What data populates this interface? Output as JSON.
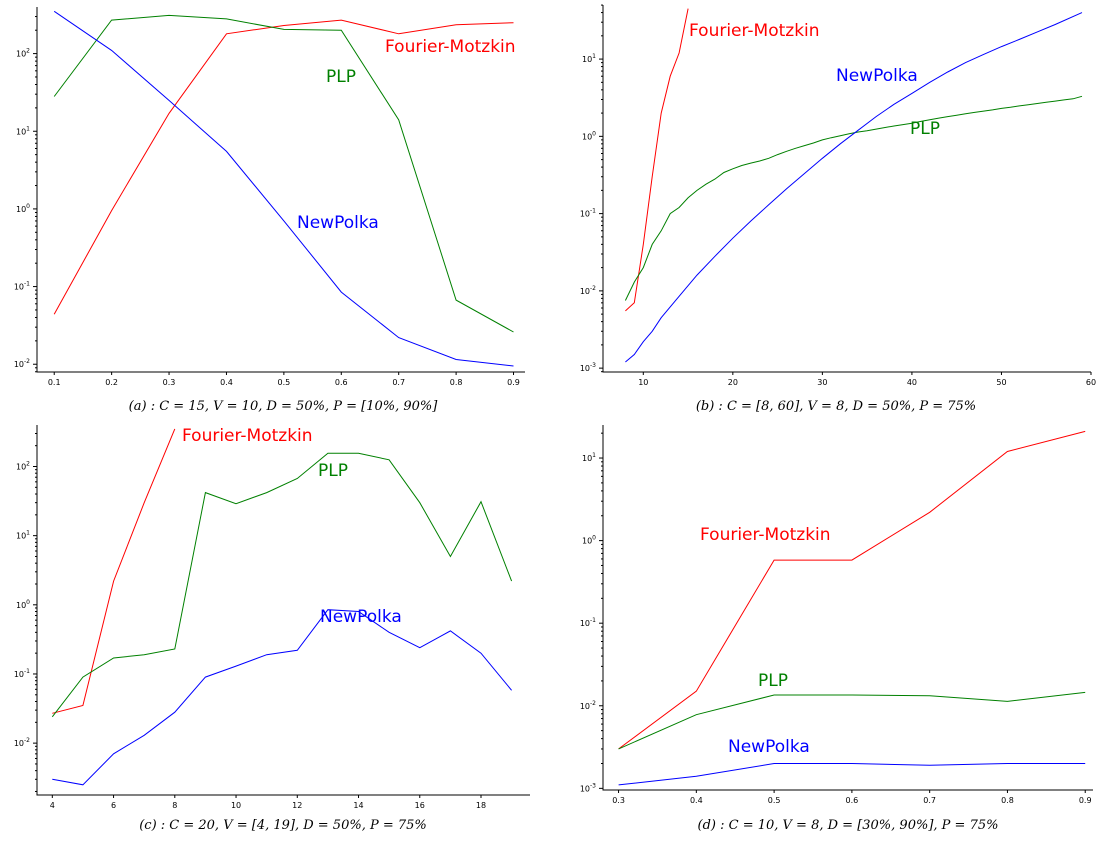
{
  "chart_data": [
    {
      "type": "line",
      "y_scale": "log",
      "caption": "(a) : C = 15, V = 10, D = 50%, P = [10%, 90%]",
      "xlim": [
        0.07,
        0.92
      ],
      "ylim_log10": [
        -2.1,
        2.6
      ],
      "x_ticks": [
        0.1,
        0.2,
        0.3,
        0.4,
        0.5,
        0.6,
        0.7,
        0.8,
        0.9
      ],
      "x_tick_labels": [
        "0.1",
        "0.2",
        "0.3",
        "0.4",
        "0.5",
        "0.6",
        "0.7",
        "0.8",
        "0.9"
      ],
      "y_tick_exponents": [
        -2,
        -1,
        0,
        1,
        2
      ],
      "series": [
        {
          "name": "Fourier-Motzkin",
          "color": "#ff0000",
          "x": [
            0.1,
            0.2,
            0.3,
            0.4,
            0.5,
            0.6,
            0.7,
            0.8,
            0.9
          ],
          "y": [
            0.044,
            0.95,
            17,
            180,
            230,
            270,
            180,
            235,
            250
          ]
        },
        {
          "name": "PLP",
          "color": "#008000",
          "x": [
            0.1,
            0.2,
            0.3,
            0.4,
            0.5,
            0.6,
            0.7,
            0.8,
            0.9
          ],
          "y": [
            28,
            270,
            310,
            280,
            205,
            200,
            14,
            0.067,
            0.026
          ]
        },
        {
          "name": "NewPolka",
          "color": "#0000ff",
          "x": [
            0.1,
            0.2,
            0.3,
            0.4,
            0.5,
            0.6,
            0.7,
            0.8,
            0.9
          ],
          "y": [
            350,
            110,
            25,
            5.5,
            0.7,
            0.085,
            0.022,
            0.0115,
            0.0095
          ]
        }
      ],
      "labels": [
        {
          "text": "Fourier-Motzkin",
          "series": 0
        },
        {
          "text": "PLP",
          "series": 1
        },
        {
          "text": "NewPolka",
          "series": 2
        }
      ]
    },
    {
      "type": "line",
      "y_scale": "log",
      "caption": "(b) : C = [8, 60], V = 8, D = 50%, P = 75%",
      "xlim": [
        5.5,
        60
      ],
      "ylim_log10": [
        -3.05,
        1.7
      ],
      "x_ticks": [
        10,
        20,
        30,
        40,
        50,
        60
      ],
      "x_tick_labels": [
        "10",
        "20",
        "30",
        "40",
        "50",
        "60"
      ],
      "y_tick_exponents": [
        -3,
        -2,
        -1,
        0,
        1
      ],
      "series": [
        {
          "name": "Fourier-Motzkin",
          "color": "#ff0000",
          "x": [
            8,
            9,
            10,
            11,
            12,
            13,
            14,
            15
          ],
          "y": [
            0.0055,
            0.007,
            0.04,
            0.3,
            2,
            6,
            12,
            45
          ]
        },
        {
          "name": "PLP",
          "color": "#008000",
          "x": [
            8,
            9,
            10,
            11,
            12,
            13,
            14,
            15,
            16,
            17,
            18,
            19,
            20,
            21,
            22,
            23,
            24,
            25,
            26,
            27,
            28,
            29,
            30,
            31,
            32,
            33,
            34,
            35,
            36,
            37,
            38,
            39,
            40,
            41,
            42,
            43,
            44,
            45,
            46,
            47,
            48,
            49,
            50,
            51,
            52,
            53,
            54,
            55,
            56,
            57,
            58,
            59
          ],
          "y": [
            0.0075,
            0.013,
            0.02,
            0.04,
            0.06,
            0.1,
            0.12,
            0.16,
            0.2,
            0.24,
            0.28,
            0.34,
            0.38,
            0.42,
            0.45,
            0.48,
            0.52,
            0.58,
            0.64,
            0.7,
            0.76,
            0.82,
            0.9,
            0.96,
            1.02,
            1.08,
            1.14,
            1.18,
            1.24,
            1.3,
            1.36,
            1.42,
            1.48,
            1.56,
            1.64,
            1.72,
            1.8,
            1.88,
            1.96,
            2.04,
            2.12,
            2.2,
            2.3,
            2.38,
            2.48,
            2.56,
            2.66,
            2.76,
            2.86,
            2.96,
            3.06,
            3.3
          ]
        },
        {
          "name": "NewPolka",
          "color": "#0000ff",
          "x": [
            8,
            9,
            10,
            11,
            12,
            14,
            16,
            18,
            20,
            22,
            24,
            26,
            28,
            30,
            32,
            34,
            36,
            38,
            40,
            42,
            44,
            46,
            48,
            50,
            52,
            54,
            56,
            59
          ],
          "y": [
            0.0012,
            0.0015,
            0.0022,
            0.003,
            0.0045,
            0.0085,
            0.016,
            0.028,
            0.048,
            0.08,
            0.13,
            0.21,
            0.33,
            0.52,
            0.8,
            1.2,
            1.8,
            2.6,
            3.6,
            5.0,
            6.8,
            9.0,
            11.5,
            14.5,
            18.0,
            22.5,
            28.0,
            40.0
          ]
        }
      ],
      "labels": [
        {
          "text": "Fourier-Motzkin",
          "series": 0
        },
        {
          "text": "NewPolka",
          "series": 2
        },
        {
          "text": "PLP",
          "series": 1
        }
      ]
    },
    {
      "type": "line",
      "y_scale": "log",
      "caption": "(c) : C = 20, V = [4, 19], D = 50%, P = 75%",
      "xlim": [
        3.5,
        19.6
      ],
      "ylim_log10": [
        -2.75,
        2.6
      ],
      "x_ticks": [
        4,
        6,
        8,
        10,
        12,
        14,
        16,
        18
      ],
      "x_tick_labels": [
        "4",
        "6",
        "8",
        "10",
        "12",
        "14",
        "16",
        "18"
      ],
      "y_tick_exponents": [
        -2,
        -1,
        0,
        1,
        2
      ],
      "series": [
        {
          "name": "Fourier-Motzkin",
          "color": "#ff0000",
          "x": [
            4,
            5,
            6,
            7,
            8
          ],
          "y": [
            0.027,
            0.035,
            2.2,
            30,
            350
          ]
        },
        {
          "name": "PLP",
          "color": "#008000",
          "x": [
            4,
            5,
            6,
            7,
            8,
            9,
            10,
            11,
            12,
            13,
            14,
            15,
            16,
            17,
            18,
            19
          ],
          "y": [
            0.024,
            0.09,
            0.17,
            0.19,
            0.23,
            42,
            29,
            42,
            67,
            155,
            155,
            125,
            30,
            5,
            31,
            2.2
          ]
        },
        {
          "name": "NewPolka",
          "color": "#0000ff",
          "x": [
            4,
            5,
            6,
            7,
            8,
            9,
            10,
            11,
            12,
            13,
            14,
            15,
            16,
            17,
            18,
            19
          ],
          "y": [
            0.003,
            0.0025,
            0.007,
            0.013,
            0.028,
            0.09,
            0.13,
            0.19,
            0.22,
            0.85,
            0.8,
            0.4,
            0.24,
            0.42,
            0.2,
            0.058
          ]
        }
      ],
      "labels": [
        {
          "text": "Fourier-Motzkin",
          "series": 0
        },
        {
          "text": "PLP",
          "series": 1
        },
        {
          "text": "NewPolka",
          "series": 2
        }
      ]
    },
    {
      "type": "line",
      "y_scale": "log",
      "caption": "(d) : C = 10, V = 8, D = [30%, 90%], P = 75%",
      "xlim": [
        0.28,
        0.91
      ],
      "ylim_log10": [
        -3.02,
        1.4
      ],
      "x_ticks": [
        0.3,
        0.4,
        0.5,
        0.6,
        0.7,
        0.8,
        0.9
      ],
      "x_tick_labels": [
        "0.3",
        "0.4",
        "0.5",
        "0.6",
        "0.7",
        "0.8",
        "0.9"
      ],
      "y_tick_exponents": [
        -3,
        -2,
        -1,
        0,
        1
      ],
      "series": [
        {
          "name": "Fourier-Motzkin",
          "color": "#ff0000",
          "x": [
            0.3,
            0.4,
            0.5,
            0.6,
            0.7,
            0.8,
            0.9
          ],
          "y": [
            0.003,
            0.015,
            0.58,
            0.58,
            2.2,
            12,
            21
          ]
        },
        {
          "name": "PLP",
          "color": "#008000",
          "x": [
            0.3,
            0.4,
            0.5,
            0.6,
            0.7,
            0.8,
            0.9
          ],
          "y": [
            0.003,
            0.0078,
            0.0135,
            0.0135,
            0.0132,
            0.0113,
            0.0145
          ]
        },
        {
          "name": "NewPolka",
          "color": "#0000ff",
          "x": [
            0.3,
            0.4,
            0.5,
            0.6,
            0.7,
            0.8,
            0.9
          ],
          "y": [
            0.0011,
            0.0014,
            0.002,
            0.002,
            0.0019,
            0.002,
            0.002
          ]
        }
      ],
      "labels": [
        {
          "text": "Fourier-Motzkin",
          "series": 0
        },
        {
          "text": "PLP",
          "series": 1
        },
        {
          "text": "NewPolka",
          "series": 2
        }
      ]
    }
  ]
}
